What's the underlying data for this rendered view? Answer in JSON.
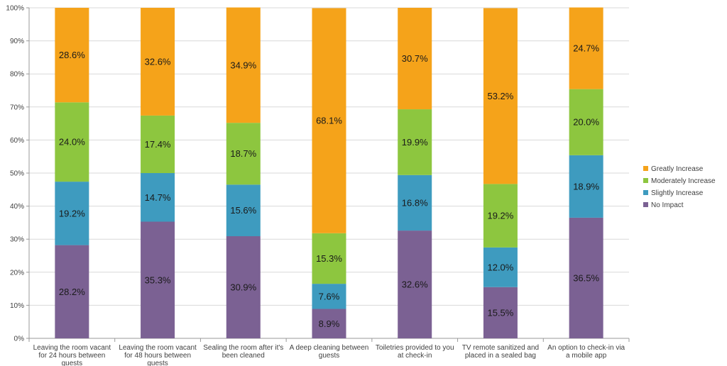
{
  "chart_data": {
    "type": "bar",
    "stacked": true,
    "percent_stacked": true,
    "categories": [
      [
        "Leaving the room vacant",
        "for 24 hours between",
        "guests"
      ],
      [
        "Leaving the room vacant",
        "for 48 hours between",
        "guests"
      ],
      [
        "Sealing the room after it's",
        "been cleaned"
      ],
      [
        "A deep cleaning between",
        "guests"
      ],
      [
        "Toiletries provided to you",
        "at check-in"
      ],
      [
        "TV remote sanitized and",
        "placed in a sealed bag"
      ],
      [
        "An option to check-in via",
        "a mobile app"
      ]
    ],
    "series": [
      {
        "name": "No Impact",
        "color": "#7b6193",
        "values": [
          28.2,
          35.3,
          30.9,
          8.9,
          32.6,
          15.5,
          36.5
        ],
        "labels": [
          "28.2%",
          "35.3%",
          "30.9%",
          "8.9%",
          "32.6%",
          "15.5%",
          "36.5%"
        ]
      },
      {
        "name": "Slightly Increase",
        "color": "#3e9bbf",
        "values": [
          19.2,
          14.7,
          15.6,
          7.6,
          16.8,
          12.0,
          18.9
        ],
        "labels": [
          "19.2%",
          "14.7%",
          "15.6%",
          "7.6%",
          "16.8%",
          "12.0%",
          "18.9%"
        ]
      },
      {
        "name": "Moderately Increase",
        "color": "#8dc63f",
        "values": [
          24.0,
          17.4,
          18.7,
          15.3,
          19.9,
          19.2,
          20.0
        ],
        "labels": [
          "24.0%",
          "17.4%",
          "18.7%",
          "15.3%",
          "19.9%",
          "19.2%",
          "20.0%"
        ]
      },
      {
        "name": "Greatly Increase",
        "color": "#f5a31a",
        "values": [
          28.6,
          32.6,
          34.9,
          68.1,
          30.7,
          53.2,
          24.7
        ],
        "labels": [
          "28.6%",
          "32.6%",
          "34.9%",
          "68.1%",
          "30.7%",
          "53.2%",
          "24.7%"
        ]
      }
    ],
    "ylim": [
      0,
      100
    ],
    "yticks": [
      "0%",
      "10%",
      "20%",
      "30%",
      "40%",
      "50%",
      "60%",
      "70%",
      "80%",
      "90%",
      "100%"
    ],
    "grid": true,
    "legend_position": "right",
    "legend_order": [
      "Greatly Increase",
      "Moderately Increase",
      "Slightly Increase",
      "No Impact"
    ],
    "title": "",
    "xlabel": "",
    "ylabel": ""
  }
}
